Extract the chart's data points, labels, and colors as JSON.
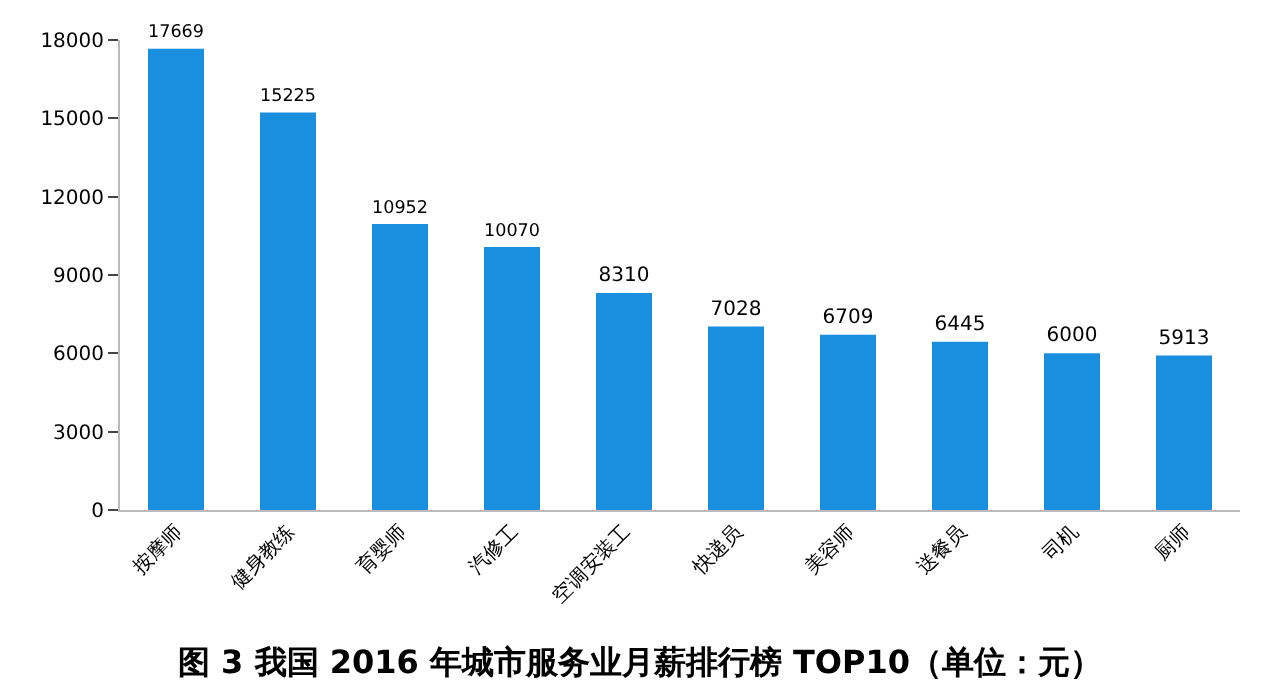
{
  "chart_data": {
    "type": "bar",
    "title": "图 3 我国 2016 年城市服务业月薪排行榜 TOP10（单位：元）",
    "categories": [
      "按摩师",
      "健身教练",
      "育婴师",
      "汽修工",
      "空调安装工",
      "快递员",
      "美容师",
      "送餐员",
      "司机",
      "厨师"
    ],
    "values": [
      17669,
      15225,
      10952,
      10070,
      8310,
      7028,
      6709,
      6445,
      6000,
      5913
    ],
    "color": "#1a8fe0",
    "ylim": [
      0,
      18000
    ],
    "yticks": [
      0,
      3000,
      6000,
      9000,
      12000,
      15000,
      18000
    ],
    "data_labels": true
  }
}
